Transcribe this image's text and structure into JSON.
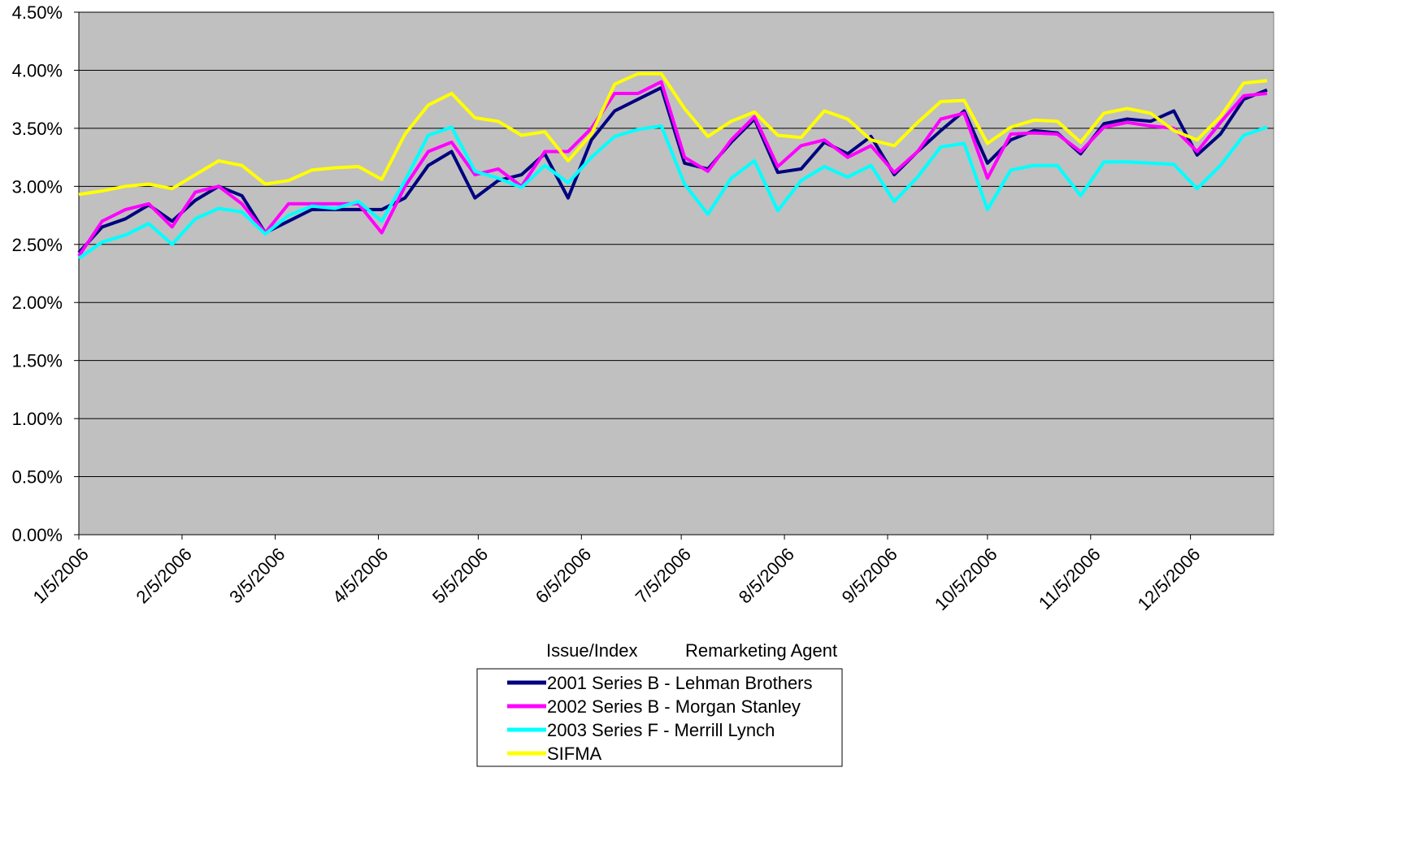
{
  "chart_data": {
    "type": "line",
    "title": "",
    "xlabel": "",
    "ylabel": "",
    "ylim": [
      0,
      0.045
    ],
    "xlim": [
      "2006-01-05",
      "2006-12-30"
    ],
    "y_ticks": [
      "0.00%",
      "0.50%",
      "1.00%",
      "1.50%",
      "2.00%",
      "2.50%",
      "3.00%",
      "3.50%",
      "4.00%",
      "4.50%"
    ],
    "x_ticks": [
      "1/5/2006",
      "2/5/2006",
      "3/5/2006",
      "4/5/2006",
      "5/5/2006",
      "6/5/2006",
      "7/5/2006",
      "8/5/2006",
      "9/5/2006",
      "10/5/2006",
      "11/5/2006",
      "12/5/2006"
    ],
    "plot_background": "#c0c0c0",
    "gridlines": true,
    "legend_header": [
      "Issue/Index",
      "Remarketing Agent"
    ],
    "legend_position": "bottom",
    "x": [
      "2006-01-05",
      "2006-01-12",
      "2006-01-19",
      "2006-01-26",
      "2006-02-02",
      "2006-02-09",
      "2006-02-16",
      "2006-02-23",
      "2006-03-02",
      "2006-03-09",
      "2006-03-16",
      "2006-03-23",
      "2006-03-30",
      "2006-04-06",
      "2006-04-13",
      "2006-04-20",
      "2006-04-27",
      "2006-05-04",
      "2006-05-11",
      "2006-05-18",
      "2006-05-25",
      "2006-06-01",
      "2006-06-08",
      "2006-06-15",
      "2006-06-22",
      "2006-06-29",
      "2006-07-06",
      "2006-07-13",
      "2006-07-20",
      "2006-07-27",
      "2006-08-03",
      "2006-08-10",
      "2006-08-17",
      "2006-08-24",
      "2006-08-31",
      "2006-09-07",
      "2006-09-14",
      "2006-09-21",
      "2006-09-28",
      "2006-10-05",
      "2006-10-12",
      "2006-10-19",
      "2006-10-26",
      "2006-11-02",
      "2006-11-09",
      "2006-11-16",
      "2006-11-23",
      "2006-11-30",
      "2006-12-07",
      "2006-12-14",
      "2006-12-21",
      "2006-12-28"
    ],
    "series": [
      {
        "name": "2001 Series B - Lehman Brothers",
        "color": "#000080",
        "values": [
          0.0243,
          0.0265,
          0.0272,
          0.0284,
          0.027,
          0.0288,
          0.03,
          0.0292,
          0.026,
          0.027,
          0.028,
          0.028,
          0.028,
          0.028,
          0.029,
          0.0318,
          0.033,
          0.029,
          0.0305,
          0.031,
          0.0328,
          0.029,
          0.034,
          0.0365,
          0.0375,
          0.0385,
          0.032,
          0.0315,
          0.0338,
          0.0358,
          0.0312,
          0.0315,
          0.0338,
          0.0328,
          0.0343,
          0.031,
          0.033,
          0.0348,
          0.0365,
          0.032,
          0.034,
          0.0348,
          0.0346,
          0.0328,
          0.0354,
          0.0358,
          0.0356,
          0.0365,
          0.0327,
          0.0345,
          0.0375,
          0.0383
        ]
      },
      {
        "name": "2002 Series B - Morgan Stanley",
        "color": "#ff00ff",
        "values": [
          0.024,
          0.027,
          0.028,
          0.0285,
          0.0265,
          0.0295,
          0.03,
          0.0285,
          0.026,
          0.0285,
          0.0285,
          0.0285,
          0.0285,
          0.026,
          0.03,
          0.033,
          0.0338,
          0.031,
          0.0315,
          0.03,
          0.033,
          0.033,
          0.035,
          0.038,
          0.038,
          0.039,
          0.0325,
          0.0313,
          0.034,
          0.036,
          0.0317,
          0.0335,
          0.034,
          0.0325,
          0.0335,
          0.0312,
          0.033,
          0.0358,
          0.0363,
          0.0307,
          0.0345,
          0.0346,
          0.0345,
          0.033,
          0.0351,
          0.0355,
          0.0352,
          0.035,
          0.033,
          0.0355,
          0.0378,
          0.038
        ]
      },
      {
        "name": "2003 Series F - Merrill Lynch",
        "color": "#00ffff",
        "values": [
          0.0238,
          0.0252,
          0.0258,
          0.0268,
          0.025,
          0.0272,
          0.0281,
          0.0278,
          0.0259,
          0.0275,
          0.0283,
          0.0281,
          0.0287,
          0.027,
          0.0305,
          0.0344,
          0.0351,
          0.0313,
          0.0307,
          0.0299,
          0.0318,
          0.0303,
          0.0325,
          0.0343,
          0.0349,
          0.0352,
          0.0302,
          0.0276,
          0.0307,
          0.0322,
          0.0279,
          0.0305,
          0.0317,
          0.0308,
          0.0318,
          0.0287,
          0.0308,
          0.0334,
          0.0337,
          0.028,
          0.0314,
          0.0318,
          0.0318,
          0.0292,
          0.0321,
          0.0321,
          0.032,
          0.0319,
          0.0298,
          0.0318,
          0.0344,
          0.0351
        ]
      },
      {
        "name": "SIFMA",
        "color": "#ffff00",
        "values": [
          0.0293,
          0.0296,
          0.03,
          0.0302,
          0.0298,
          0.031,
          0.0322,
          0.0318,
          0.0302,
          0.0305,
          0.0314,
          0.0316,
          0.0317,
          0.0306,
          0.0345,
          0.037,
          0.038,
          0.0359,
          0.0356,
          0.0344,
          0.0347,
          0.0322,
          0.0345,
          0.0388,
          0.0397,
          0.0397,
          0.0367,
          0.0343,
          0.0356,
          0.0364,
          0.0344,
          0.0342,
          0.0365,
          0.0358,
          0.034,
          0.0335,
          0.0355,
          0.0373,
          0.0374,
          0.0337,
          0.0351,
          0.0357,
          0.0356,
          0.0338,
          0.0363,
          0.0367,
          0.0363,
          0.0348,
          0.034,
          0.036,
          0.0389,
          0.0391
        ]
      }
    ]
  }
}
